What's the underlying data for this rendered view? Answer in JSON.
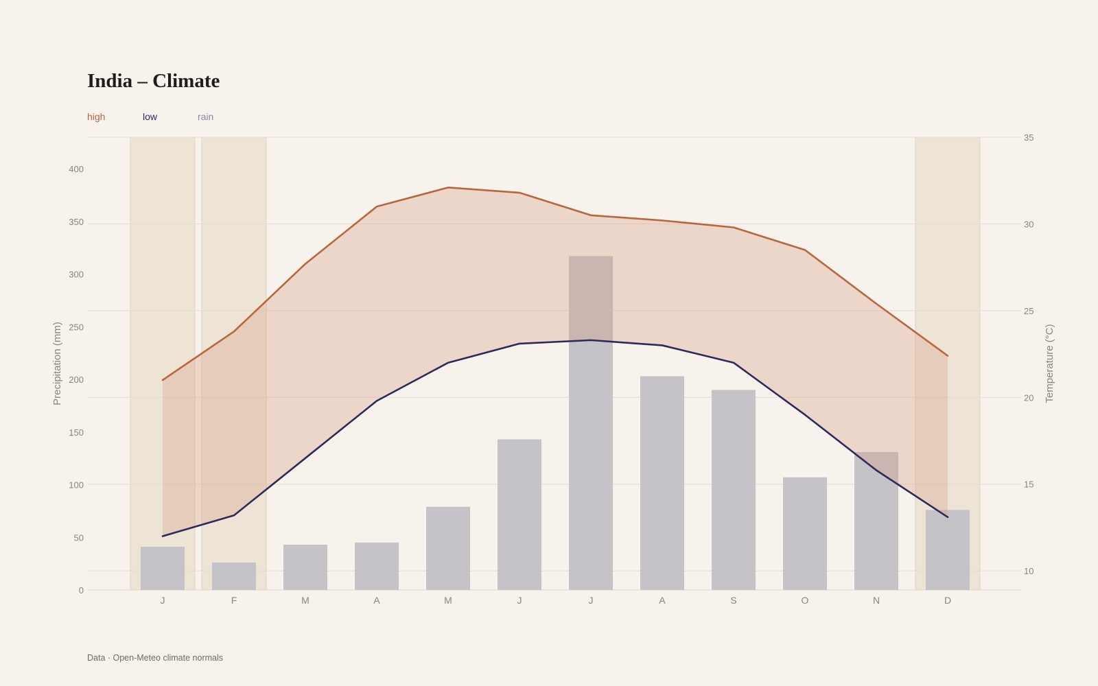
{
  "title": "India – Climate",
  "source": "Data · Open-Meteo climate normals",
  "legend": {
    "high": "high",
    "low": "low",
    "rain": "rain"
  },
  "colors": {
    "background": "#f7f2ec",
    "high": "#b8663e",
    "low": "#2d2a5a",
    "rain": "#8a86a6",
    "rain_bar": "#c2bfc6",
    "band_fill": "#d89a80",
    "dry_season": "#e6dac8",
    "grid": "#e3dcd3",
    "tick_text": "#8a847d"
  },
  "chart_data": {
    "type": "bar",
    "title": "India – Climate",
    "categories": [
      "J",
      "F",
      "M",
      "A",
      "M",
      "J",
      "J",
      "A",
      "S",
      "O",
      "N",
      "D"
    ],
    "series": [
      {
        "name": "rain",
        "type": "bar",
        "axis": "left",
        "values": [
          41,
          26,
          43,
          45,
          79,
          143,
          317,
          203,
          190,
          107,
          131,
          76
        ]
      },
      {
        "name": "high",
        "type": "line",
        "axis": "right",
        "values": [
          21.0,
          23.8,
          27.7,
          31.0,
          32.1,
          31.8,
          30.5,
          30.2,
          29.8,
          28.5,
          25.4,
          22.4
        ]
      },
      {
        "name": "low",
        "type": "line",
        "axis": "right",
        "values": [
          12.0,
          13.2,
          16.5,
          19.8,
          22.0,
          23.1,
          23.3,
          23.0,
          22.0,
          19.0,
          15.8,
          13.1
        ]
      }
    ],
    "shaded_months": [
      "J",
      "F",
      "D"
    ],
    "ylabel": "Precipitation (mm)",
    "y2label": "Temperature (°C)",
    "ylim": [
      0,
      430
    ],
    "y2lim": [
      8.9,
      35
    ],
    "yticks": [
      0,
      50,
      100,
      150,
      200,
      250,
      300,
      350,
      400
    ],
    "y2ticks": [
      10,
      15,
      20,
      25,
      30,
      35
    ],
    "grid": true,
    "legend_position": "top-left"
  }
}
